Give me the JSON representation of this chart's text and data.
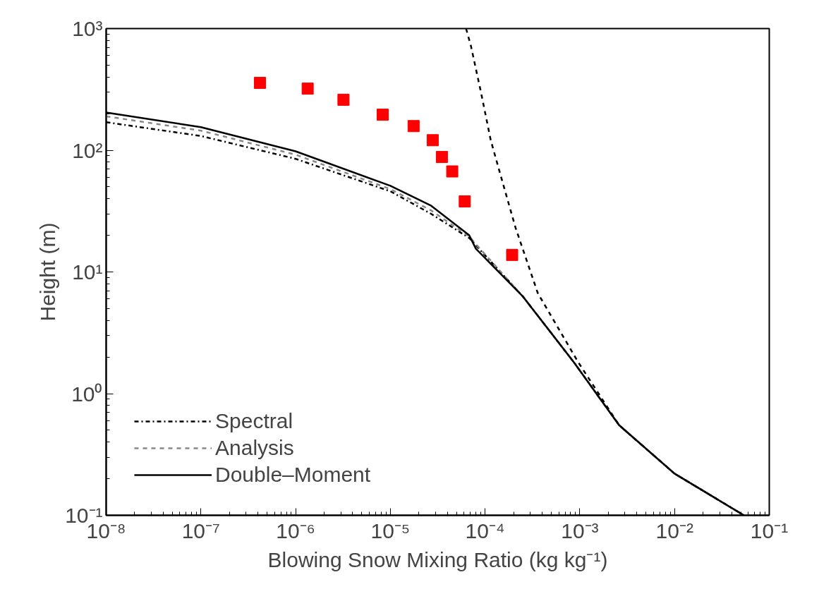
{
  "chart_data": {
    "type": "line",
    "xlabel": "Blowing Snow Mixing Ratio (kg kg⁻¹)",
    "ylabel": "Height (m)",
    "log": "xy",
    "grid": false,
    "legend": "bottom left",
    "xlim": [
      1e-08,
      0.1
    ],
    "ylim": [
      0.1,
      1000
    ],
    "xticks": [
      {
        "value": 1e-08,
        "label": "10⁻⁸"
      },
      {
        "value": 1e-07,
        "label": "10⁻⁷"
      },
      {
        "value": 1e-06,
        "label": "10⁻⁶"
      },
      {
        "value": 1e-05,
        "label": "10⁻⁵"
      },
      {
        "value": 0.0001,
        "label": "10⁻⁴"
      },
      {
        "value": 0.001,
        "label": "10⁻³"
      },
      {
        "value": 0.01,
        "label": "10⁻²"
      },
      {
        "value": 0.1,
        "label": "10⁻¹"
      }
    ],
    "yticks": [
      {
        "value": 0.1,
        "label": "10⁻¹"
      },
      {
        "value": 1,
        "label": "10⁰"
      },
      {
        "value": 10,
        "label": "10¹"
      },
      {
        "value": 100,
        "label": "10²"
      },
      {
        "value": 1000,
        "label": "10³"
      }
    ],
    "series": [
      {
        "name": "Spectral",
        "line_style": "dashdot",
        "color": "#000000",
        "x": [
          1e-08,
          1e-07,
          1e-06,
          1e-05,
          2.7e-05,
          6.8e-05,
          0.00025,
          0.00087,
          0.0026,
          0.01,
          0.054
        ],
        "values": [
          170,
          131,
          85,
          46,
          30,
          19,
          6.3,
          1.8,
          0.55,
          0.22,
          0.1
        ]
      },
      {
        "name": "Analysis",
        "line_style": "dashed",
        "color": "#888888",
        "x": [
          1e-08,
          1e-07,
          1e-06,
          1e-05,
          2.7e-05,
          6.8e-05,
          0.00025,
          0.00087,
          0.0026,
          0.01,
          0.054
        ],
        "values": [
          190,
          145,
          92,
          48,
          32,
          19.5,
          6.3,
          1.8,
          0.55,
          0.22,
          0.1
        ]
      },
      {
        "name": "Double–Moment",
        "line_style": "solid",
        "color": "#000000",
        "x": [
          1e-08,
          1e-07,
          1e-06,
          1e-05,
          2.7e-05,
          6.8e-05,
          8e-05,
          0.00025,
          0.00087,
          0.0026,
          0.01,
          0.054
        ],
        "values": [
          204,
          155,
          98,
          51,
          35,
          20,
          15.5,
          6.3,
          1.8,
          0.55,
          0.22,
          0.1
        ]
      },
      {
        "line_style": "dashed",
        "color": "#000000",
        "x": [
          6.3e-05,
          7.1e-05,
          9.1e-05,
          0.000115,
          0.000158,
          0.00021,
          0.00036,
          0.00095,
          0.0026,
          0.01,
          0.054
        ],
        "values": [
          1000,
          716,
          293,
          120,
          50,
          23,
          6.7,
          1.84,
          0.55,
          0.22,
          0.1
        ]
      },
      {
        "type": "scatter",
        "marker": "square",
        "color": "#ff0000",
        "x": [
          4.2e-07,
          1.34e-06,
          3.2e-06,
          8.3e-06,
          1.76e-05,
          2.8e-05,
          3.5e-05,
          4.5e-05,
          6.1e-05,
          0.000193
        ],
        "values": [
          358,
          321,
          260,
          196,
          158,
          121,
          88,
          67,
          38,
          13.8
        ]
      }
    ]
  }
}
